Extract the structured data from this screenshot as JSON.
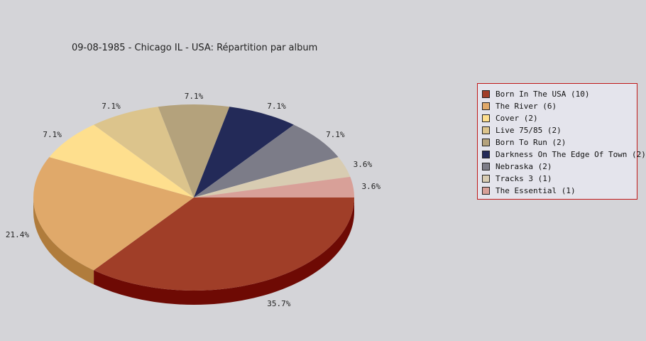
{
  "chart_data": {
    "type": "pie",
    "title": "09-08-1985 - Chicago IL - USA:  Répartition par album",
    "slices": [
      {
        "name": "Born In The USA",
        "value": 10,
        "label": "35.7%",
        "legend": "Born In The USA (10)",
        "color": "#a03e28",
        "side": "#6e0a04"
      },
      {
        "name": "The River",
        "value": 6,
        "label": "21.4%",
        "legend": "The River (6)",
        "color": "#e0a96a",
        "side": "#b07c3c"
      },
      {
        "name": "Cover",
        "value": 2,
        "label": "7.1%",
        "legend": "Cover (2)",
        "color": "#fedf8e",
        "side": "#c8ae5e"
      },
      {
        "name": "Live 75/85",
        "value": 2,
        "label": "7.1%",
        "legend": "Live 75/85 (2)",
        "color": "#dcc48c",
        "side": "#a8955e"
      },
      {
        "name": "Born To Run",
        "value": 2,
        "label": "7.1%",
        "legend": "Born To Run (2)",
        "color": "#b4a27c",
        "side": "#857552"
      },
      {
        "name": "Darkness On The Edge Of Town",
        "value": 2,
        "label": "7.1%",
        "legend": "Darkness On The Edge Of Town (2)",
        "color": "#232a58",
        "side": "#10152e"
      },
      {
        "name": "Nebraska",
        "value": 2,
        "label": "7.1%",
        "legend": "Nebraska (2)",
        "color": "#7c7c88",
        "side": "#54545e"
      },
      {
        "name": "Tracks 3",
        "value": 1,
        "label": "3.6%",
        "legend": "Tracks 3 (1)",
        "color": "#d8ccb2",
        "side": "#a89c84"
      },
      {
        "name": "The Essential",
        "value": 1,
        "label": "3.6%",
        "legend": "The Essential (1)",
        "color": "#d8a098",
        "side": "#a8726a"
      }
    ],
    "legend_position": "right"
  }
}
